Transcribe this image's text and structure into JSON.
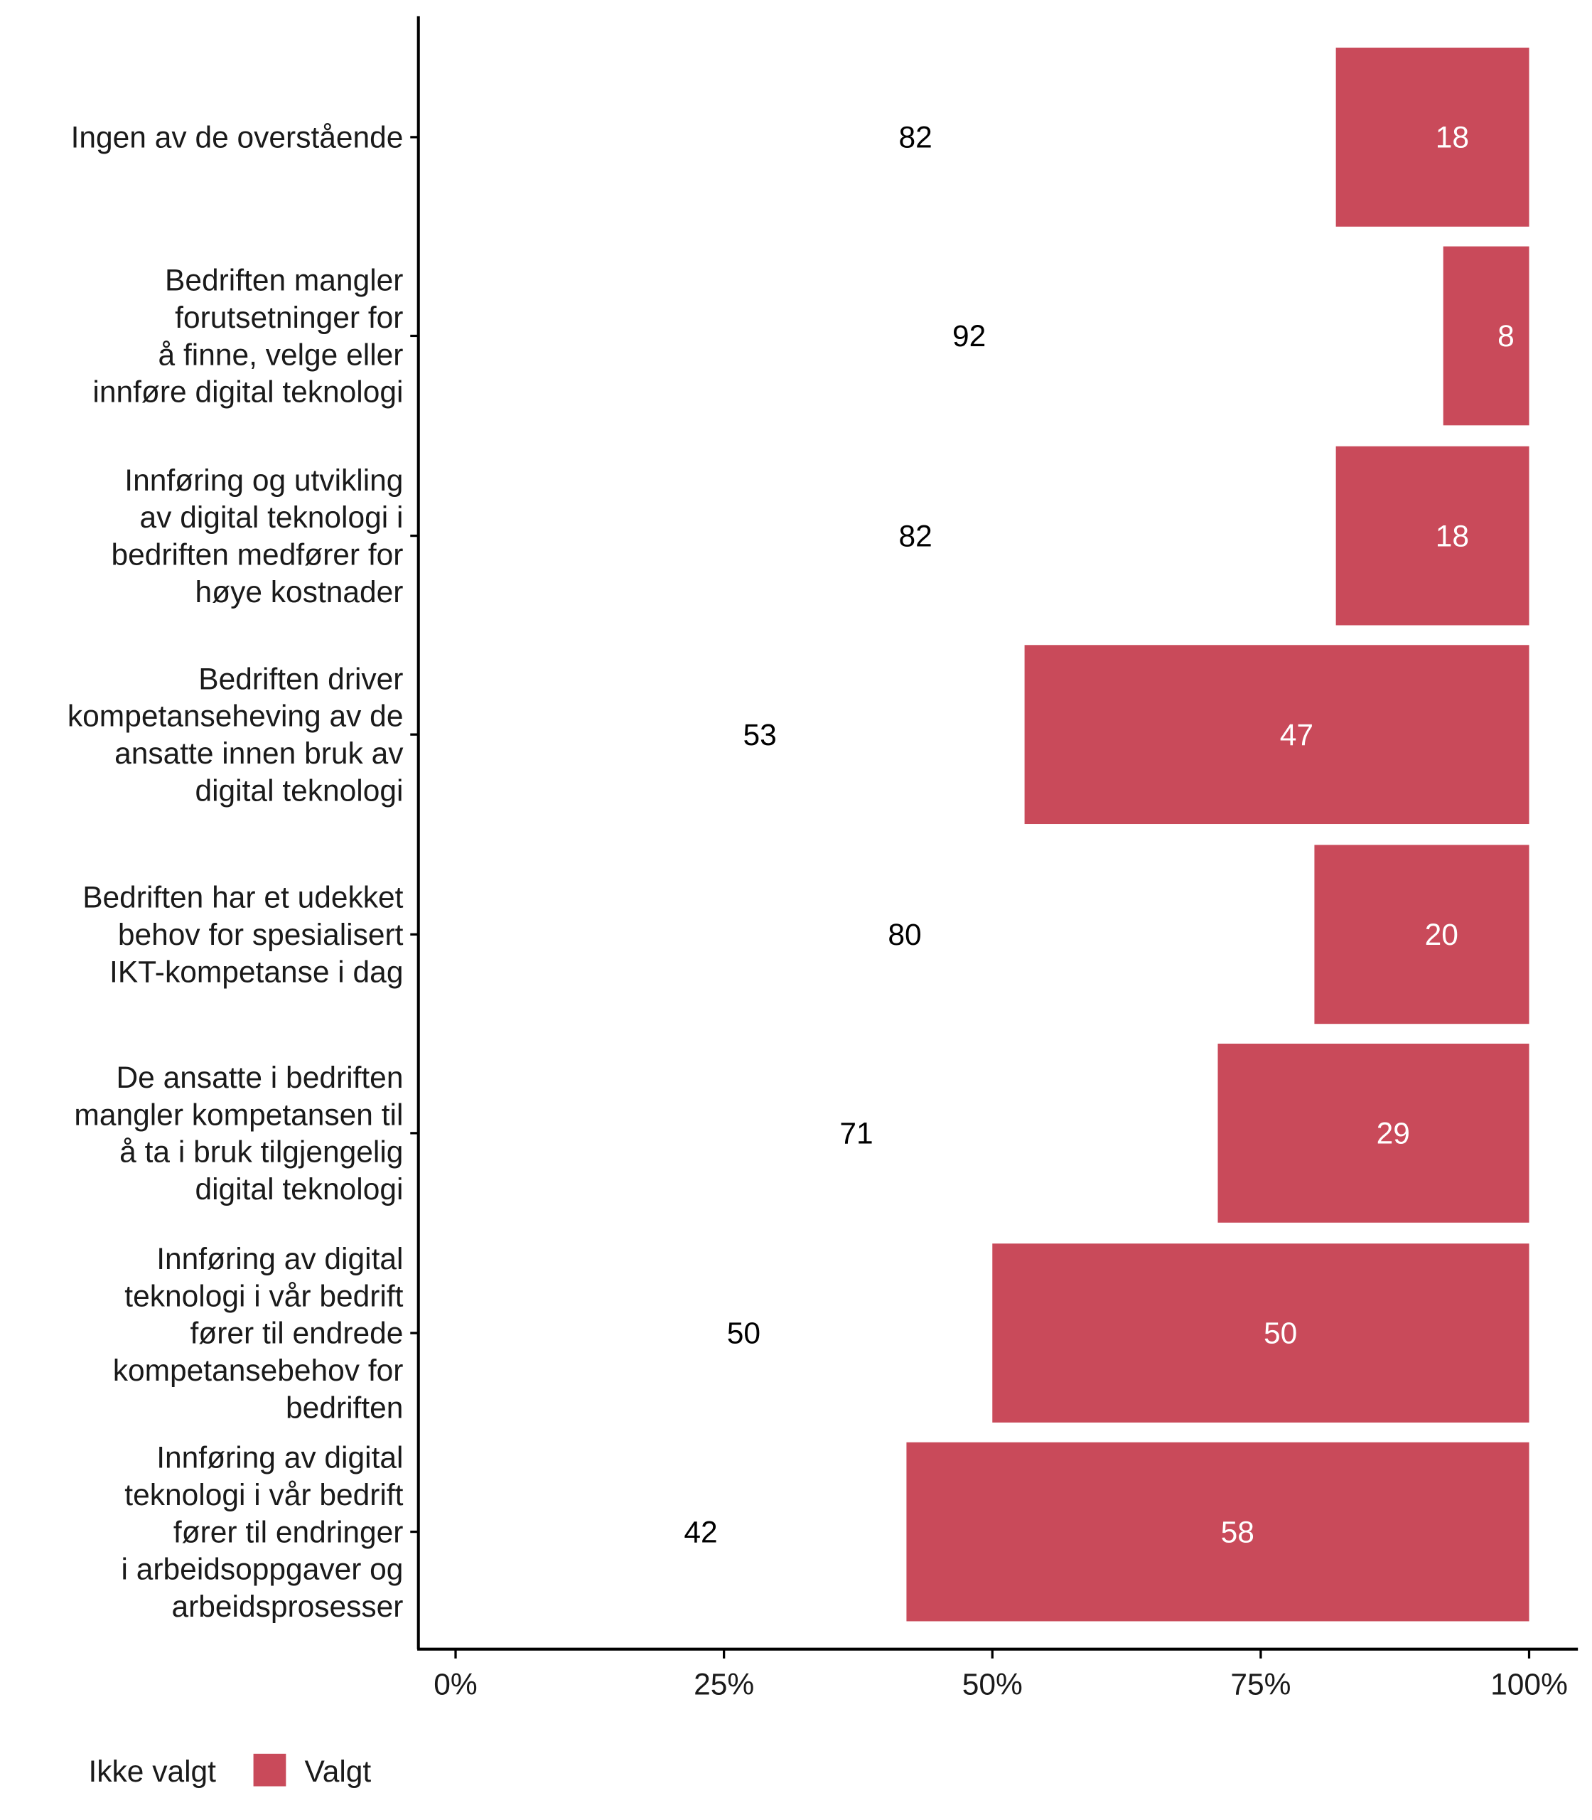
{
  "chart_data": {
    "type": "bar",
    "orientation": "horizontal",
    "stacked": true,
    "categories": [
      [
        "Ingen av de overstående"
      ],
      [
        "Bedriften mangler",
        "forutsetninger for",
        "å finne, velge eller",
        "innføre digital teknologi"
      ],
      [
        "Innføring og utvikling",
        "av digital teknologi i",
        "bedriften medfører for",
        "høye kostnader"
      ],
      [
        "Bedriften driver",
        "kompetanseheving av de",
        "ansatte innen bruk av",
        "digital teknologi"
      ],
      [
        "Bedriften har et udekket",
        "behov for spesialisert",
        "IKT-kompetanse i dag"
      ],
      [
        "De ansatte i bedriften",
        "mangler kompetansen til",
        "å ta i bruk tilgjengelig",
        "digital teknologi"
      ],
      [
        "Innføring av digital",
        "teknologi i vår bedrift",
        "fører til endrede",
        "kompetansebehov for",
        "bedriften"
      ],
      [
        "Innføring av digital",
        "teknologi i vår bedrift",
        "fører til endringer",
        "i arbeidsoppgaver og",
        "arbeidsprosesser"
      ]
    ],
    "series": [
      {
        "name": "Ikke valgt",
        "color": "#FFFFFF",
        "label_color": "#000000",
        "values": [
          82,
          92,
          82,
          53,
          80,
          71,
          50,
          42
        ]
      },
      {
        "name": "Valgt",
        "color": "#C94A5A",
        "label_color": "#FFFFFF",
        "values": [
          18,
          8,
          18,
          47,
          20,
          29,
          50,
          58
        ]
      }
    ],
    "xlim": [
      0,
      100
    ],
    "x_ticks": [
      "0%",
      "25%",
      "50%",
      "75%",
      "100%"
    ],
    "x_tick_values": [
      0,
      25,
      50,
      75,
      100
    ],
    "xlabel": "",
    "ylabel": "",
    "grid": false,
    "legend_position": "bottom-left"
  }
}
